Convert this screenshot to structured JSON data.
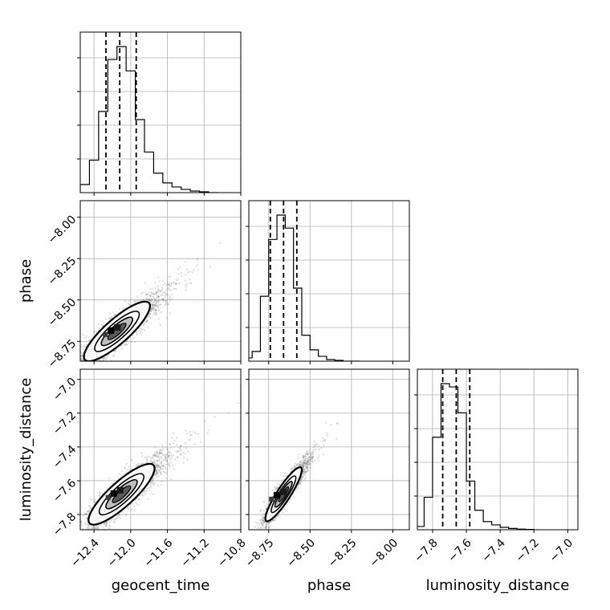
{
  "chart_data": {
    "type": "corner",
    "parameters": [
      "geocent_time",
      "phase",
      "luminosity_distance"
    ],
    "axes": {
      "geocent_time": {
        "range": [
          -12.55,
          -10.8
        ],
        "ticks": [
          -12.4,
          -12.0,
          -11.6,
          -11.2,
          -10.8
        ],
        "tick_labels": [
          "−12.4",
          "−12.0",
          "−11.6",
          "−11.2",
          "−10.8"
        ]
      },
      "phase": {
        "range": [
          -8.87,
          -7.9
        ],
        "ticks": [
          -8.75,
          -8.5,
          -8.25,
          -8.0
        ],
        "tick_labels": [
          "−8.75",
          "−8.50",
          "−8.25",
          "−8.00"
        ]
      },
      "luminosity_distance": {
        "range": [
          -7.89,
          -6.94
        ],
        "ticks": [
          -7.8,
          -7.6,
          -7.4,
          -7.2,
          -7.0
        ],
        "tick_labels": [
          "−7.8",
          "−7.6",
          "−7.4",
          "−7.2",
          "−7.0"
        ]
      }
    },
    "quantile_lines": {
      "geocent_time": [
        -12.27,
        -12.12,
        -11.94
      ],
      "phase": [
        -8.74,
        -8.66,
        -8.58
      ],
      "luminosity_distance": [
        -7.74,
        -7.66,
        -7.58
      ]
    },
    "histograms": {
      "geocent_time": {
        "bin_edges": [
          -12.65,
          -12.55,
          -12.45,
          -12.35,
          -12.25,
          -12.15,
          -12.05,
          -11.95,
          -11.85,
          -11.75,
          -11.65,
          -11.55,
          -11.45,
          -11.35,
          -11.25,
          -11.15,
          -11.05
        ],
        "counts": [
          0.01,
          0.05,
          0.2,
          0.5,
          0.82,
          0.9,
          0.75,
          0.45,
          0.25,
          0.12,
          0.06,
          0.035,
          0.02,
          0.01,
          0.005,
          0.0
        ]
      },
      "phase": {
        "bin_edges": [
          -8.9,
          -8.85,
          -8.8,
          -8.75,
          -8.7,
          -8.65,
          -8.6,
          -8.55,
          -8.5,
          -8.45,
          -8.4,
          -8.35,
          -8.3,
          -8.25,
          -8.2
        ],
        "counts": [
          0.02,
          0.06,
          0.4,
          0.75,
          0.9,
          0.82,
          0.45,
          0.16,
          0.07,
          0.03,
          0.01,
          0.005,
          0.0,
          0.0
        ]
      },
      "luminosity_distance": {
        "bin_edges": [
          -7.9,
          -7.85,
          -7.8,
          -7.75,
          -7.7,
          -7.65,
          -7.6,
          -7.55,
          -7.5,
          -7.45,
          -7.4,
          -7.35,
          -7.3,
          -7.25,
          -7.2
        ],
        "counts": [
          0.02,
          0.2,
          0.57,
          0.9,
          0.88,
          0.72,
          0.3,
          0.12,
          0.05,
          0.03,
          0.015,
          0.008,
          0.004,
          0.002
        ]
      }
    },
    "density_2d": [
      {
        "x": "geocent_time",
        "y": "phase",
        "center": [
          -12.15,
          -8.69
        ],
        "peak": [
          -12.18,
          -8.69
        ],
        "correlation": 0.85,
        "spread": [
          0.18,
          0.09
        ]
      },
      {
        "x": "geocent_time",
        "y": "luminosity_distance",
        "center": [
          -12.1,
          -7.68
        ],
        "peak": [
          -12.15,
          -7.68
        ],
        "correlation": 0.85,
        "spread": [
          0.18,
          0.09
        ]
      },
      {
        "x": "phase",
        "y": "luminosity_distance",
        "center": [
          -8.66,
          -7.68
        ],
        "peak": [
          -8.68,
          -7.69
        ],
        "correlation": 0.9,
        "spread": [
          0.055,
          0.08
        ]
      }
    ],
    "grid": true,
    "colors": {
      "line": "#000000",
      "grid": "#b0b0b0",
      "points": "#7f7f7f",
      "density": [
        "#e6e6e6",
        "#bdbdbd",
        "#7a7a7a",
        "#3a3a3a",
        "#000000"
      ]
    }
  }
}
